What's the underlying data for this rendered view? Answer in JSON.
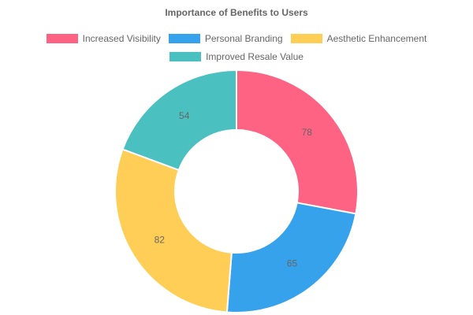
{
  "chart_data": {
    "type": "pie",
    "variant": "doughnut",
    "title": "Importance of Benefits to Users",
    "legend_position": "top",
    "categories": [
      "Increased Visibility",
      "Personal Branding",
      "Aesthetic Enhancement",
      "Improved Resale Value"
    ],
    "values": [
      78,
      65,
      82,
      54
    ],
    "colors": [
      "#ff6384",
      "#36a2eb",
      "#ffce56",
      "#4bc0c0"
    ],
    "data_labels": [
      "78",
      "65",
      "82",
      "54"
    ]
  },
  "legend": [
    {
      "label": "Increased Visibility",
      "color": "#ff6384"
    },
    {
      "label": "Personal Branding",
      "color": "#36a2eb"
    },
    {
      "label": "Aesthetic Enhancement",
      "color": "#ffce56"
    },
    {
      "label": "Improved Resale Value",
      "color": "#4bc0c0"
    }
  ]
}
